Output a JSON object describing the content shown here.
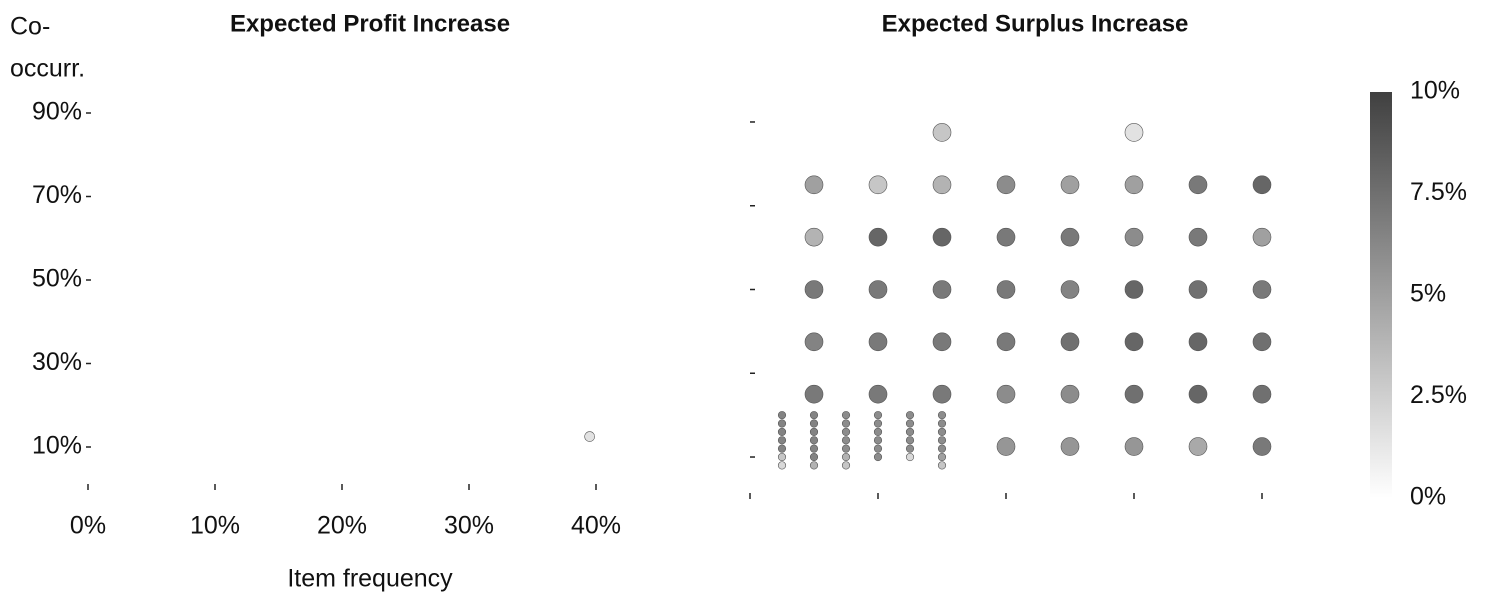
{
  "chart_data": [
    {
      "type": "scatter",
      "title": "Expected Profit Increase",
      "ylabel": [
        "Co-",
        "occurr."
      ],
      "xlabel": "Item frequency",
      "x": [
        39.5
      ],
      "y": [
        12.5
      ],
      "values": [
        1.5
      ],
      "xlim": [
        0,
        40
      ],
      "ylim": [
        0,
        100
      ],
      "xticks": [
        {
          "value": 0,
          "label": "0%"
        },
        {
          "value": 10,
          "label": "10%"
        },
        {
          "value": 20,
          "label": "20%"
        },
        {
          "value": 30,
          "label": "30%"
        },
        {
          "value": 40,
          "label": "40%"
        }
      ],
      "yticks": [
        {
          "value": 10,
          "label": "10%"
        },
        {
          "value": 30,
          "label": "30%"
        },
        {
          "value": 50,
          "label": "50%"
        },
        {
          "value": 70,
          "label": "70%"
        },
        {
          "value": 90,
          "label": "90%"
        }
      ]
    },
    {
      "type": "scatter",
      "title": "Expected Surplus Increase",
      "x": [
        15,
        30,
        5,
        10,
        15,
        20,
        25,
        30,
        35,
        40,
        5,
        10,
        15,
        20,
        25,
        30,
        35,
        40,
        5,
        10,
        15,
        20,
        25,
        30,
        35,
        40,
        5,
        10,
        15,
        20,
        25,
        30,
        35,
        40,
        5,
        10,
        15,
        20,
        25,
        30,
        35,
        40,
        20,
        25,
        30,
        35,
        40,
        2.5,
        2.5,
        2.5,
        2.5,
        2.5,
        2.5,
        2.5,
        5,
        5,
        5,
        5,
        5,
        5,
        5,
        7.5,
        7.5,
        7.5,
        7.5,
        7.5,
        7.5,
        7.5,
        10,
        10,
        10,
        10,
        10,
        10,
        12.5,
        12.5,
        12.5,
        12.5,
        12.5,
        12.5,
        15,
        15,
        15,
        15,
        15,
        15,
        15
      ],
      "y": [
        87.5,
        87.5,
        75,
        75,
        75,
        75,
        75,
        75,
        75,
        75,
        62.5,
        62.5,
        62.5,
        62.5,
        62.5,
        62.5,
        62.5,
        62.5,
        50,
        50,
        50,
        50,
        50,
        50,
        50,
        50,
        37.5,
        37.5,
        37.5,
        37.5,
        37.5,
        37.5,
        37.5,
        37.5,
        25,
        25,
        25,
        25,
        25,
        25,
        25,
        25,
        12.5,
        12.5,
        12.5,
        12.5,
        12.5,
        20,
        18,
        16,
        14,
        12,
        10,
        8,
        20,
        18,
        16,
        14,
        12,
        10,
        8,
        20,
        18,
        16,
        14,
        12,
        10,
        8,
        20,
        18,
        16,
        14,
        12,
        10,
        20,
        18,
        16,
        14,
        12,
        10,
        20,
        18,
        16,
        14,
        12,
        10,
        8
      ],
      "values": [
        3,
        1.5,
        5,
        3,
        4,
        6,
        5,
        5,
        7,
        8,
        4,
        8,
        8,
        7,
        7,
        6,
        7,
        5,
        7,
        7,
        7,
        7,
        6.5,
        8,
        7.5,
        7,
        6.5,
        7,
        7,
        7,
        7.5,
        8,
        8,
        7.5,
        7,
        7,
        7,
        6,
        6,
        7.5,
        8,
        7.5,
        5.5,
        5.5,
        5.5,
        4.5,
        7,
        6.5,
        6.5,
        6.5,
        6.5,
        6.5,
        3,
        2,
        6.5,
        6.5,
        6.5,
        6.5,
        6.5,
        6.5,
        4,
        6,
        6,
        6,
        6,
        6,
        4,
        3,
        6,
        6,
        6,
        6,
        6,
        6,
        6,
        6,
        6,
        6,
        6,
        2,
        6,
        6,
        6,
        6,
        6,
        5,
        3
      ],
      "xlim": [
        0,
        40
      ],
      "ylim": [
        0,
        100
      ],
      "xticks": [
        0,
        10,
        20,
        30,
        40
      ],
      "yticks": [
        10,
        30,
        50,
        70,
        90
      ],
      "colorbar": {
        "lim": [
          0,
          10
        ],
        "colors": [
          "#ffffff",
          "#404040"
        ],
        "ticks": [
          {
            "value": 10,
            "label": "10%"
          },
          {
            "value": 7.5,
            "label": "7.5%"
          },
          {
            "value": 5,
            "label": "5%"
          },
          {
            "value": 2.5,
            "label": "2.5%"
          },
          {
            "value": 0,
            "label": "0%"
          }
        ]
      }
    }
  ]
}
